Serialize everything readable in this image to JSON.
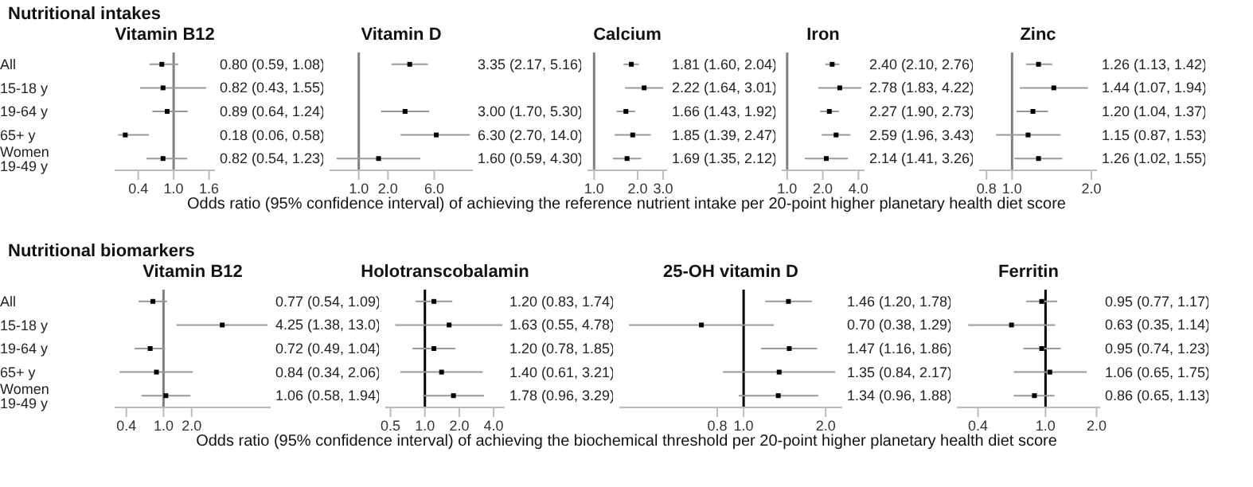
{
  "chart_data": [
    {
      "type": "scatter",
      "orientation": "horizontal",
      "annotations": [
        "Nutritional intakes"
      ],
      "title": "Vitamin B12",
      "xlabel": "Odds ratio (95% confidence interval) of achieving the reference nutrient intake per 20-point higher planetary health diet score",
      "categories": [
        "All",
        "15-18 y",
        "19-64 y",
        "65+ y",
        "Women 19-49 y"
      ],
      "values": [
        0.8,
        0.82,
        0.89,
        0.18,
        0.82
      ],
      "errors": [
        [
          0.59,
          1.08
        ],
        [
          0.43,
          1.55
        ],
        [
          0.64,
          1.24
        ],
        [
          0.06,
          0.58
        ],
        [
          0.54,
          1.23
        ]
      ],
      "value_labels": [
        "0.80 (0.59, 1.08)",
        "0.82 (0.43, 1.55)",
        "0.89 (0.64, 1.24)",
        "0.18 (0.06, 0.58)",
        "0.82 (0.54, 1.23)"
      ],
      "color": "#000000",
      "marker": "square",
      "xlim": [
        0,
        1.7
      ],
      "xticks": [
        0.4,
        {
          "value": 1,
          "label": "1.0"
        },
        1.6
      ],
      "ref_lines": [
        {
          "axis": "x",
          "value": 1,
          "color": "#808080"
        }
      ]
    },
    {
      "type": "scatter",
      "orientation": "horizontal",
      "title": "Vitamin D",
      "values": [
        3.35,
        null,
        3.0,
        6.3,
        1.6
      ],
      "errors": [
        [
          2.17,
          5.16
        ],
        null,
        [
          1.7,
          5.3
        ],
        [
          2.7,
          14.0
        ],
        [
          0.59,
          4.3
        ]
      ],
      "value_labels": [
        "3.35 (2.17, 5.16)",
        null,
        "3.00 (1.70, 5.30)",
        "6.30 (2.70, 14.0)",
        "1.60 (0.59, 4.30)"
      ],
      "color": "#000000",
      "marker": "square",
      "log": "x",
      "xlim": [
        0.5,
        15
      ],
      "xticks": [
        {
          "value": 1,
          "label": "1.0"
        },
        {
          "value": 2,
          "label": "2.0"
        },
        {
          "value": 6,
          "label": "6.0"
        }
      ],
      "ref_lines": [
        {
          "axis": "x",
          "value": 1,
          "color": "#808080"
        }
      ],
      "tick_labels": "x"
    },
    {
      "type": "scatter",
      "orientation": "horizontal",
      "title": "Calcium",
      "values": [
        1.81,
        2.22,
        1.66,
        1.85,
        1.69
      ],
      "errors": [
        [
          1.6,
          2.04
        ],
        [
          1.64,
          3.01
        ],
        [
          1.43,
          1.92
        ],
        [
          1.39,
          2.47
        ],
        [
          1.35,
          2.12
        ]
      ],
      "value_labels": [
        "1.81 (1.60, 2.04)",
        "2.22 (1.64, 3.01)",
        "1.66 (1.43, 1.92)",
        "1.85 (1.39, 2.47)",
        "1.69 (1.35, 2.12)"
      ],
      "color": "#000000",
      "marker": "square",
      "log": "x",
      "xlim": [
        0.9,
        3.2
      ],
      "xticks": [
        {
          "value": 1,
          "label": "1.0"
        },
        {
          "value": 2,
          "label": "2.0"
        },
        {
          "value": 3,
          "label": "3.0"
        }
      ],
      "ref_lines": [
        {
          "axis": "x",
          "value": 1,
          "color": "#808080"
        }
      ],
      "tick_labels": "x"
    },
    {
      "type": "scatter",
      "orientation": "horizontal",
      "title": "Iron",
      "values": [
        2.4,
        2.78,
        2.27,
        2.59,
        2.14
      ],
      "errors": [
        [
          2.1,
          2.76
        ],
        [
          1.83,
          4.22
        ],
        [
          1.9,
          2.73
        ],
        [
          1.96,
          3.43
        ],
        [
          1.41,
          3.26
        ]
      ],
      "value_labels": [
        "2.40 (2.10, 2.76)",
        "2.78 (1.83, 4.22)",
        "2.27 (1.90, 2.73)",
        "2.59 (1.96, 3.43)",
        "2.14 (1.41, 3.26)"
      ],
      "color": "#000000",
      "marker": "square",
      "log": "x",
      "xlim": [
        0.9,
        4.5
      ],
      "xticks": [
        {
          "value": 1,
          "label": "1.0"
        },
        {
          "value": 2,
          "label": "2.0"
        },
        {
          "value": 4,
          "label": "4.0"
        }
      ],
      "ref_lines": [
        {
          "axis": "x",
          "value": 1,
          "color": "#808080"
        }
      ],
      "tick_labels": "x"
    },
    {
      "type": "scatter",
      "orientation": "horizontal",
      "title": "Zinc",
      "values": [
        1.26,
        1.44,
        1.2,
        1.15,
        1.26
      ],
      "errors": [
        [
          1.13,
          1.42
        ],
        [
          1.07,
          1.94
        ],
        [
          1.04,
          1.37
        ],
        [
          0.87,
          1.53
        ],
        [
          1.02,
          1.55
        ]
      ],
      "value_labels": [
        "1.26 (1.13, 1.42)",
        "1.44 (1.07, 1.94)",
        "1.20 (1.04, 1.37)",
        "1.15 (0.87, 1.53)",
        "1.26 (1.02, 1.55)"
      ],
      "color": "#000000",
      "marker": "square",
      "log": "x",
      "xlim": [
        0.75,
        2.1
      ],
      "xticks": [
        0.8,
        {
          "value": 1,
          "label": "1.0"
        },
        {
          "value": 2,
          "label": "2.0"
        }
      ],
      "ref_lines": [
        {
          "axis": "x",
          "value": 1,
          "color": "#808080"
        }
      ],
      "tick_labels": "x"
    },
    {
      "type": "scatter",
      "orientation": "horizontal",
      "annotations": [
        "Nutritional biomarkers"
      ],
      "title": "Vitamin B12",
      "xlabel": "Odds ratio (95% confidence interval) of achieving the biochemical threshold per 20-point higher planetary health diet score",
      "categories": [
        "All",
        "15-18 y",
        "19-64 y",
        "65+ y",
        "Women 19-49 y"
      ],
      "values": [
        0.77,
        4.25,
        0.72,
        0.84,
        1.06
      ],
      "errors": [
        [
          0.54,
          1.09
        ],
        [
          1.38,
          13.0
        ],
        [
          0.49,
          1.04
        ],
        [
          0.34,
          2.06
        ],
        [
          0.58,
          1.94
        ]
      ],
      "value_labels": [
        "0.77 (0.54, 1.09)",
        "4.25 (1.38, 13.0)",
        "0.72 (0.49, 1.04)",
        "0.84 (0.34, 2.06)",
        "1.06 (0.58, 1.94)"
      ],
      "color": "#000000",
      "marker": "square",
      "log": "x",
      "xlim": [
        0.3,
        14
      ],
      "xticks": [
        0.4,
        {
          "value": 1,
          "label": "1.0"
        },
        {
          "value": 2,
          "label": "2.0"
        }
      ],
      "ref_lines": [
        {
          "axis": "x",
          "value": 1,
          "color": "#808080"
        }
      ]
    },
    {
      "type": "scatter",
      "orientation": "horizontal",
      "title": "Holotranscobalamin",
      "values": [
        1.2,
        1.63,
        1.2,
        1.4,
        1.78
      ],
      "errors": [
        [
          0.83,
          1.74
        ],
        [
          0.55,
          4.78
        ],
        [
          0.78,
          1.85
        ],
        [
          0.61,
          3.21
        ],
        [
          0.96,
          3.29
        ]
      ],
      "value_labels": [
        "1.20 (0.83, 1.74)",
        "1.63 (0.55, 4.78)",
        "1.20 (0.78, 1.85)",
        "1.40 (0.61, 3.21)",
        "1.78 (0.96, 3.29)"
      ],
      "color": "#000000",
      "marker": "square",
      "log": "x",
      "xlim": [
        0.45,
        5
      ],
      "xticks": [
        0.5,
        {
          "value": 1,
          "label": "1.0"
        },
        {
          "value": 2,
          "label": "2.0"
        },
        {
          "value": 4,
          "label": "4.0"
        }
      ],
      "ref_lines": [
        {
          "axis": "x",
          "value": 1,
          "color": "#000000"
        }
      ],
      "tick_labels": "x"
    },
    {
      "type": "scatter",
      "orientation": "horizontal",
      "title": "25-OH vitamin D",
      "values": [
        1.46,
        0.7,
        1.47,
        1.35,
        1.34
      ],
      "errors": [
        [
          1.2,
          1.78
        ],
        [
          0.38,
          1.29
        ],
        [
          1.16,
          1.86
        ],
        [
          0.84,
          2.17
        ],
        [
          0.96,
          1.88
        ]
      ],
      "value_labels": [
        "1.46 (1.20, 1.78)",
        "0.70 (0.38, 1.29)",
        "1.47 (1.16, 1.86)",
        "1.35 (0.84, 2.17)",
        "1.34 (0.96, 1.88)"
      ],
      "color": "#000000",
      "marker": "square",
      "log": "x",
      "xlim": [
        0.35,
        2.3
      ],
      "xticks": [
        0.8,
        {
          "value": 1,
          "label": "1.0"
        },
        {
          "value": 2,
          "label": "2.0"
        }
      ],
      "ref_lines": [
        {
          "axis": "x",
          "value": 1,
          "color": "#000000"
        }
      ],
      "tick_labels": "x"
    },
    {
      "type": "scatter",
      "orientation": "horizontal",
      "title": "Ferritin",
      "values": [
        0.95,
        0.63,
        0.95,
        1.06,
        0.86
      ],
      "errors": [
        [
          0.77,
          1.17
        ],
        [
          0.35,
          1.14
        ],
        [
          0.74,
          1.23
        ],
        [
          0.65,
          1.75
        ],
        [
          0.65,
          1.13
        ]
      ],
      "value_labels": [
        "0.95 (0.77, 1.17)",
        "0.63 (0.35, 1.14)",
        "0.95 (0.74, 1.23)",
        "1.06 (0.65, 1.75)",
        "0.86 (0.65, 1.13)"
      ],
      "color": "#000000",
      "marker": "square",
      "log": "x",
      "xlim": [
        0.3,
        2.1
      ],
      "xticks": [
        0.4,
        {
          "value": 1,
          "label": "1.0"
        },
        {
          "value": 2,
          "label": "2.0"
        }
      ],
      "ref_lines": [
        {
          "axis": "x",
          "value": 1,
          "color": "#000000"
        }
      ],
      "tick_labels": "x"
    }
  ]
}
